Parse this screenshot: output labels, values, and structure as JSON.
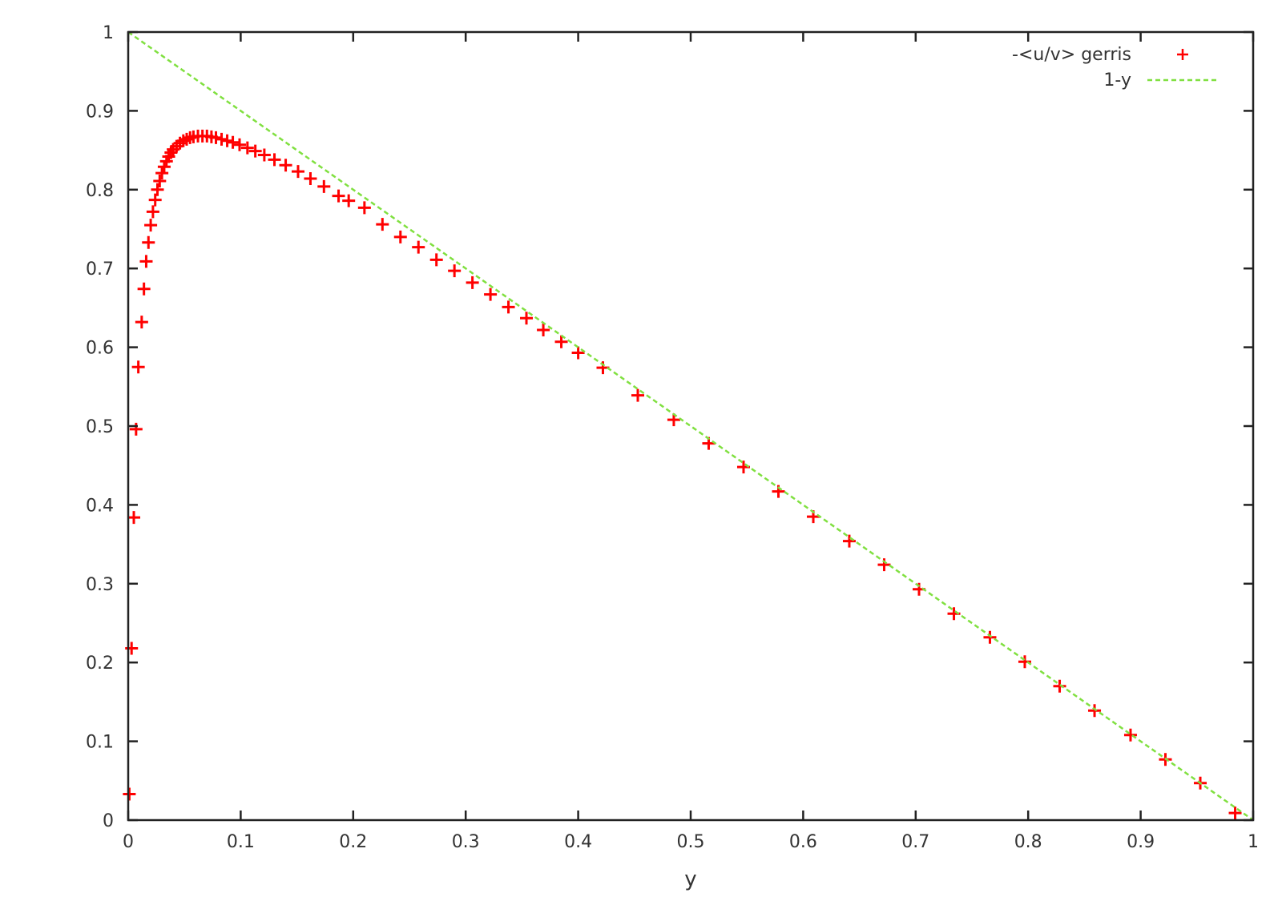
{
  "chart_data": {
    "type": "scatter",
    "title": "",
    "xlabel": "y",
    "ylabel": "",
    "xlim": [
      0,
      1
    ],
    "ylim": [
      0,
      1
    ],
    "x_ticks": [
      "0",
      "0.1",
      "0.2",
      "0.3",
      "0.4",
      "0.5",
      "0.6",
      "0.7",
      "0.8",
      "0.9",
      "1"
    ],
    "y_ticks": [
      "0",
      "0.1",
      "0.2",
      "0.3",
      "0.4",
      "0.5",
      "0.6",
      "0.7",
      "0.8",
      "0.9",
      "1"
    ],
    "grid": false,
    "legend_position": "top-right",
    "series": [
      {
        "name": "-<u/v> gerris",
        "marker": "plus",
        "color": "#ff0000",
        "points": [
          [
            0.001,
            0.033
          ],
          [
            0.003,
            0.218
          ],
          [
            0.005,
            0.384
          ],
          [
            0.007,
            0.496
          ],
          [
            0.009,
            0.575
          ],
          [
            0.012,
            0.632
          ],
          [
            0.014,
            0.674
          ],
          [
            0.016,
            0.709
          ],
          [
            0.018,
            0.733
          ],
          [
            0.02,
            0.755
          ],
          [
            0.022,
            0.772
          ],
          [
            0.024,
            0.787
          ],
          [
            0.026,
            0.8
          ],
          [
            0.028,
            0.811
          ],
          [
            0.03,
            0.821
          ],
          [
            0.032,
            0.829
          ],
          [
            0.034,
            0.836
          ],
          [
            0.036,
            0.842
          ],
          [
            0.038,
            0.847
          ],
          [
            0.04,
            0.851
          ],
          [
            0.043,
            0.855
          ],
          [
            0.046,
            0.859
          ],
          [
            0.049,
            0.862
          ],
          [
            0.052,
            0.864
          ],
          [
            0.055,
            0.866
          ],
          [
            0.058,
            0.867
          ],
          [
            0.062,
            0.868
          ],
          [
            0.066,
            0.868
          ],
          [
            0.07,
            0.868
          ],
          [
            0.074,
            0.867
          ],
          [
            0.078,
            0.866
          ],
          [
            0.083,
            0.864
          ],
          [
            0.088,
            0.862
          ],
          [
            0.093,
            0.86
          ],
          [
            0.099,
            0.857
          ],
          [
            0.106,
            0.853
          ],
          [
            0.113,
            0.849
          ],
          [
            0.121,
            0.844
          ],
          [
            0.13,
            0.838
          ],
          [
            0.14,
            0.831
          ],
          [
            0.151,
            0.823
          ],
          [
            0.162,
            0.814
          ],
          [
            0.174,
            0.804
          ],
          [
            0.187,
            0.792
          ],
          [
            0.196,
            0.786
          ],
          [
            0.21,
            0.777
          ],
          [
            0.226,
            0.756
          ],
          [
            0.242,
            0.74
          ],
          [
            0.258,
            0.727
          ],
          [
            0.274,
            0.711
          ],
          [
            0.29,
            0.697
          ],
          [
            0.306,
            0.682
          ],
          [
            0.322,
            0.667
          ],
          [
            0.338,
            0.651
          ],
          [
            0.354,
            0.637
          ],
          [
            0.369,
            0.622
          ],
          [
            0.385,
            0.607
          ],
          [
            0.4,
            0.593
          ],
          [
            0.422,
            0.574
          ],
          [
            0.453,
            0.539
          ],
          [
            0.485,
            0.508
          ],
          [
            0.516,
            0.478
          ],
          [
            0.547,
            0.448
          ],
          [
            0.578,
            0.417
          ],
          [
            0.609,
            0.385
          ],
          [
            0.641,
            0.354
          ],
          [
            0.672,
            0.324
          ],
          [
            0.703,
            0.293
          ],
          [
            0.734,
            0.262
          ],
          [
            0.766,
            0.232
          ],
          [
            0.797,
            0.201
          ],
          [
            0.828,
            0.17
          ],
          [
            0.859,
            0.139
          ],
          [
            0.891,
            0.108
          ],
          [
            0.922,
            0.077
          ],
          [
            0.953,
            0.047
          ],
          [
            0.984,
            0.009
          ]
        ]
      },
      {
        "name": "1-y",
        "marker": "dashed-line",
        "color": "#80e040",
        "points": [
          [
            0,
            1
          ],
          [
            1,
            0
          ]
        ]
      }
    ]
  }
}
